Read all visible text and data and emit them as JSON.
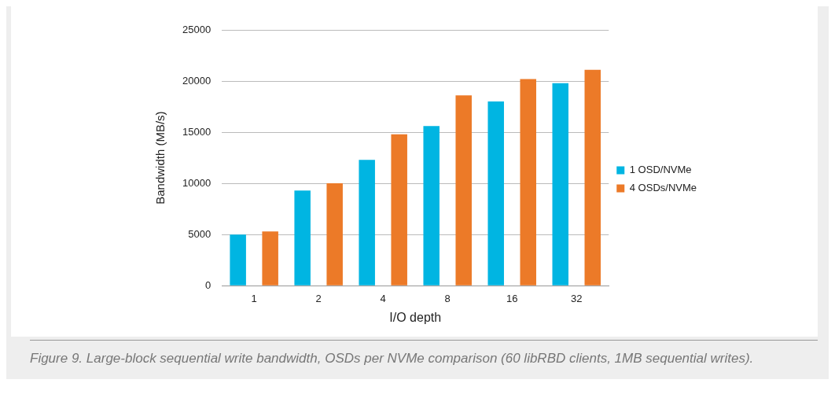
{
  "chart_data": {
    "type": "bar",
    "xlabel": "I/O depth",
    "ylabel": "Bandwidth (MB/s)",
    "categories": [
      "1",
      "2",
      "4",
      "8",
      "16",
      "32"
    ],
    "series": [
      {
        "name": "1 OSD/NVMe",
        "color": "#00b5e2",
        "values": [
          5000,
          9300,
          12300,
          15600,
          18000,
          19800
        ]
      },
      {
        "name": "4 OSDs/NVMe",
        "color": "#ec7a28",
        "values": [
          5300,
          10000,
          14800,
          18600,
          20200,
          21100
        ]
      }
    ],
    "ylim": [
      0,
      25000
    ],
    "yticks": [
      0,
      5000,
      10000,
      15000,
      20000,
      25000
    ],
    "grid": "y",
    "legend": "right",
    "annotations": [
      "Figure 9. Large-block sequential write bandwidth, OSDs per NVMe comparison (60 libRBD clients, 1MB sequential writes)."
    ]
  }
}
